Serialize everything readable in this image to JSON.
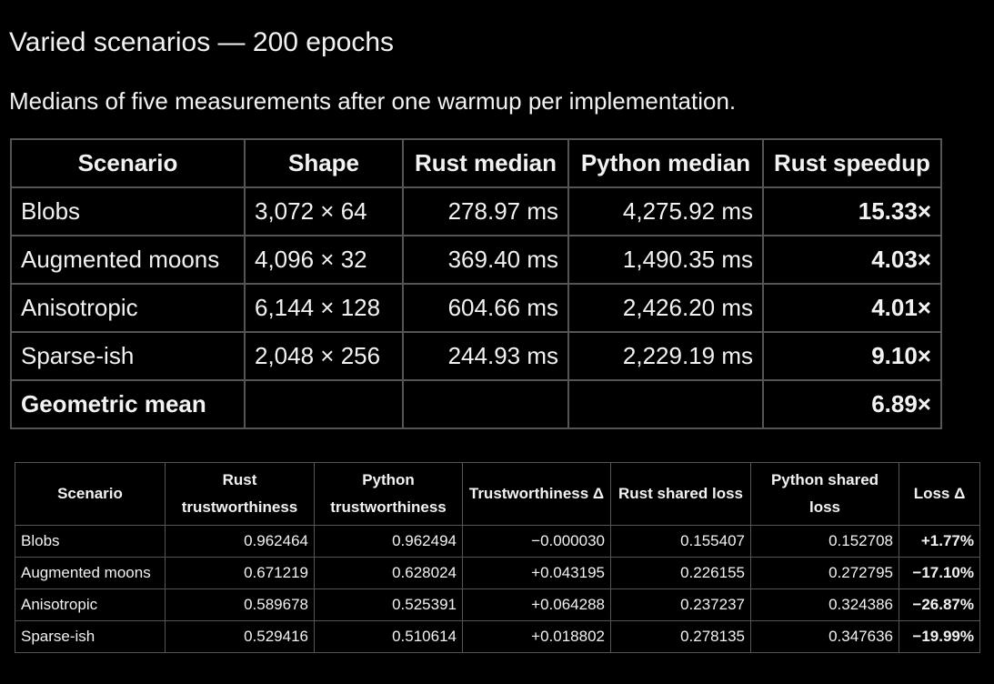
{
  "title": "Varied scenarios — 200 epochs",
  "subtitle": "Medians of five measurements after one warmup per implementation.",
  "table1": {
    "headers": [
      "Scenario",
      "Shape",
      "Rust median",
      "Python median",
      "Rust speedup"
    ],
    "rows": [
      [
        "Blobs",
        "3,072 × 64",
        "278.97 ms",
        "4,275.92 ms",
        "15.33×"
      ],
      [
        "Augmented moons",
        "4,096 × 32",
        "369.40 ms",
        "1,490.35 ms",
        "4.03×"
      ],
      [
        "Anisotropic",
        "6,144 × 128",
        "604.66 ms",
        "2,426.20 ms",
        "4.01×"
      ],
      [
        "Sparse-ish",
        "2,048 × 256",
        "244.93 ms",
        "2,229.19 ms",
        "9.10×"
      ],
      [
        "Geometric mean",
        null,
        null,
        null,
        "6.89×"
      ]
    ]
  },
  "table2": {
    "headers": [
      "Scenario",
      "Rust trustworthiness",
      "Python trustworthiness",
      "Trustworthiness Δ",
      "Rust shared loss",
      "Python shared loss",
      "Loss Δ"
    ],
    "rows": [
      [
        "Blobs",
        "0.962464",
        "0.962494",
        "−0.000030",
        "0.155407",
        "0.152708",
        "+1.77%"
      ],
      [
        "Augmented moons",
        "0.671219",
        "0.628024",
        "+0.043195",
        "0.226155",
        "0.272795",
        "−17.10%"
      ],
      [
        "Anisotropic",
        "0.589678",
        "0.525391",
        "+0.064288",
        "0.237237",
        "0.324386",
        "−26.87%"
      ],
      [
        "Sparse-ish",
        "0.529416",
        "0.510614",
        "+0.018802",
        "0.278135",
        "0.347636",
        "−19.99%"
      ]
    ]
  }
}
